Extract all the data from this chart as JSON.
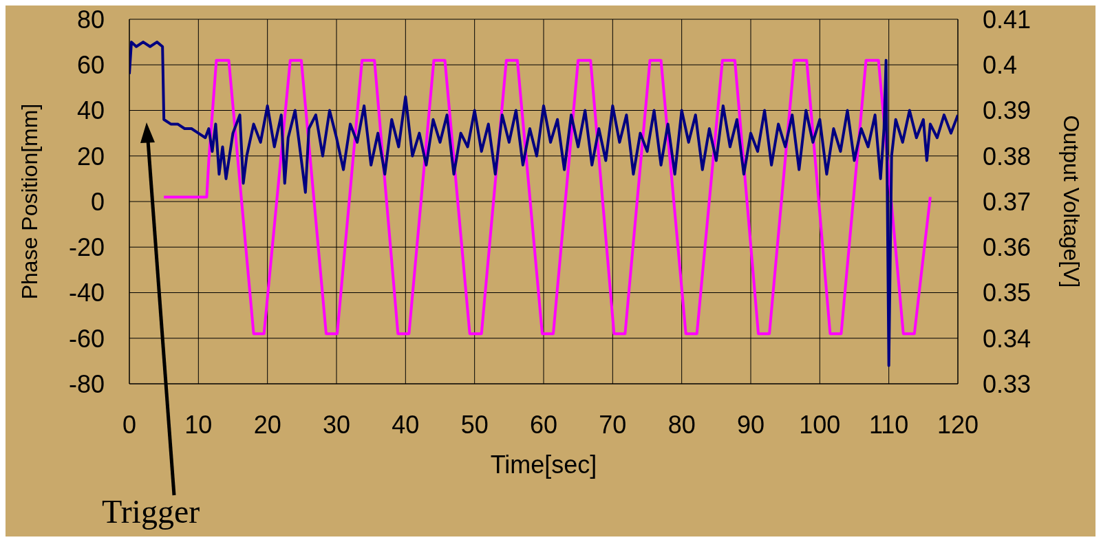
{
  "chart_data": {
    "type": "line",
    "xlabel": "Time[sec]",
    "ylabel": "Phase Position[mm]",
    "y2label": "Output Voltage[V]",
    "xlim": [
      0,
      120
    ],
    "xticks": [
      0,
      10,
      20,
      30,
      40,
      50,
      60,
      70,
      80,
      90,
      100,
      110,
      120
    ],
    "ylim": [
      -80,
      80
    ],
    "yticks": [
      -80,
      -60,
      -40,
      -20,
      0,
      20,
      40,
      60,
      80
    ],
    "y2lim": [
      0.33,
      0.41
    ],
    "y2ticks": [
      0.33,
      0.34,
      0.35,
      0.36,
      0.37,
      0.38,
      0.39,
      0.4,
      0.41
    ],
    "grid": true,
    "annotations": [
      "Trigger"
    ],
    "series": [
      {
        "color": "#ff00ff",
        "x": [
          5,
          11.2,
          11.5,
          12.6,
          14.4,
          18,
          19.5,
          23.3,
          24.9,
          28.5,
          30.1,
          33.7,
          35.5,
          38.9,
          40.5,
          44.1,
          45.7,
          49.3,
          51,
          54.6,
          56.2,
          59.8,
          61.4,
          65,
          66.8,
          70.2,
          71.8,
          75.4,
          77,
          80.6,
          82.2,
          85.9,
          87.7,
          91.1,
          92.7,
          96.3,
          98.1,
          101.5,
          103.1,
          106.7,
          108.5,
          112.1,
          113.7,
          116
        ],
        "values": [
          2,
          2,
          18,
          62,
          62,
          -58,
          -58,
          62,
          62,
          -58,
          -58,
          62,
          62,
          -58,
          -58,
          62,
          62,
          -58,
          -58,
          62,
          62,
          -58,
          -58,
          62,
          62,
          -58,
          -58,
          62,
          62,
          -58,
          -58,
          62,
          62,
          -58,
          -58,
          62,
          62,
          -58,
          -58,
          62,
          62,
          -58,
          -58,
          2
        ]
      },
      {
        "color": "#000080",
        "axis": "y2",
        "x": [
          0,
          0.3,
          1,
          2,
          3,
          4,
          4.8,
          5,
          6,
          7,
          8,
          9,
          10,
          11,
          11.5,
          12,
          12.5,
          13,
          13.5,
          14,
          15,
          16,
          16.5,
          17,
          18,
          19,
          20,
          21,
          22,
          22.5,
          23,
          24,
          25,
          25.5,
          26,
          27,
          28,
          29,
          30,
          31,
          32,
          33,
          34,
          35,
          36,
          37,
          38,
          39,
          40,
          41,
          42,
          43,
          44,
          45,
          46,
          47,
          48,
          49,
          50,
          51,
          52,
          53,
          54,
          55,
          56,
          57,
          58,
          59,
          60,
          61,
          62,
          63,
          64,
          65,
          66,
          67,
          68,
          69,
          70,
          71,
          72,
          73,
          74,
          75,
          76,
          77,
          78,
          79,
          80,
          81,
          82,
          83,
          84,
          85,
          86,
          87,
          88,
          89,
          90,
          91,
          92,
          93,
          94,
          95,
          96,
          97,
          98,
          99,
          100,
          101,
          102,
          103,
          104,
          105,
          106,
          107,
          108,
          108.8,
          109.3,
          109.6,
          110,
          110.4,
          111,
          112,
          113,
          114,
          115,
          115.5,
          116,
          117,
          118,
          119,
          120
        ],
        "values": [
          0.398,
          0.405,
          0.404,
          0.405,
          0.404,
          0.405,
          0.404,
          0.388,
          0.387,
          0.387,
          0.386,
          0.386,
          0.385,
          0.384,
          0.386,
          0.381,
          0.387,
          0.376,
          0.382,
          0.375,
          0.385,
          0.389,
          0.374,
          0.38,
          0.387,
          0.383,
          0.391,
          0.382,
          0.389,
          0.374,
          0.384,
          0.39,
          0.378,
          0.372,
          0.386,
          0.389,
          0.38,
          0.39,
          0.384,
          0.377,
          0.387,
          0.383,
          0.391,
          0.378,
          0.385,
          0.376,
          0.388,
          0.382,
          0.393,
          0.38,
          0.385,
          0.378,
          0.388,
          0.383,
          0.389,
          0.376,
          0.385,
          0.382,
          0.39,
          0.381,
          0.387,
          0.376,
          0.389,
          0.383,
          0.39,
          0.378,
          0.386,
          0.38,
          0.391,
          0.383,
          0.388,
          0.377,
          0.389,
          0.382,
          0.39,
          0.378,
          0.386,
          0.379,
          0.391,
          0.383,
          0.389,
          0.376,
          0.385,
          0.381,
          0.39,
          0.378,
          0.387,
          0.376,
          0.39,
          0.383,
          0.389,
          0.377,
          0.386,
          0.379,
          0.391,
          0.382,
          0.388,
          0.376,
          0.385,
          0.381,
          0.39,
          0.378,
          0.387,
          0.382,
          0.389,
          0.377,
          0.39,
          0.383,
          0.388,
          0.376,
          0.386,
          0.381,
          0.39,
          0.379,
          0.386,
          0.382,
          0.389,
          0.375,
          0.386,
          0.401,
          0.334,
          0.38,
          0.388,
          0.383,
          0.39,
          0.384,
          0.388,
          0.379,
          0.387,
          0.384,
          0.389,
          0.385,
          0.389
        ]
      }
    ]
  }
}
